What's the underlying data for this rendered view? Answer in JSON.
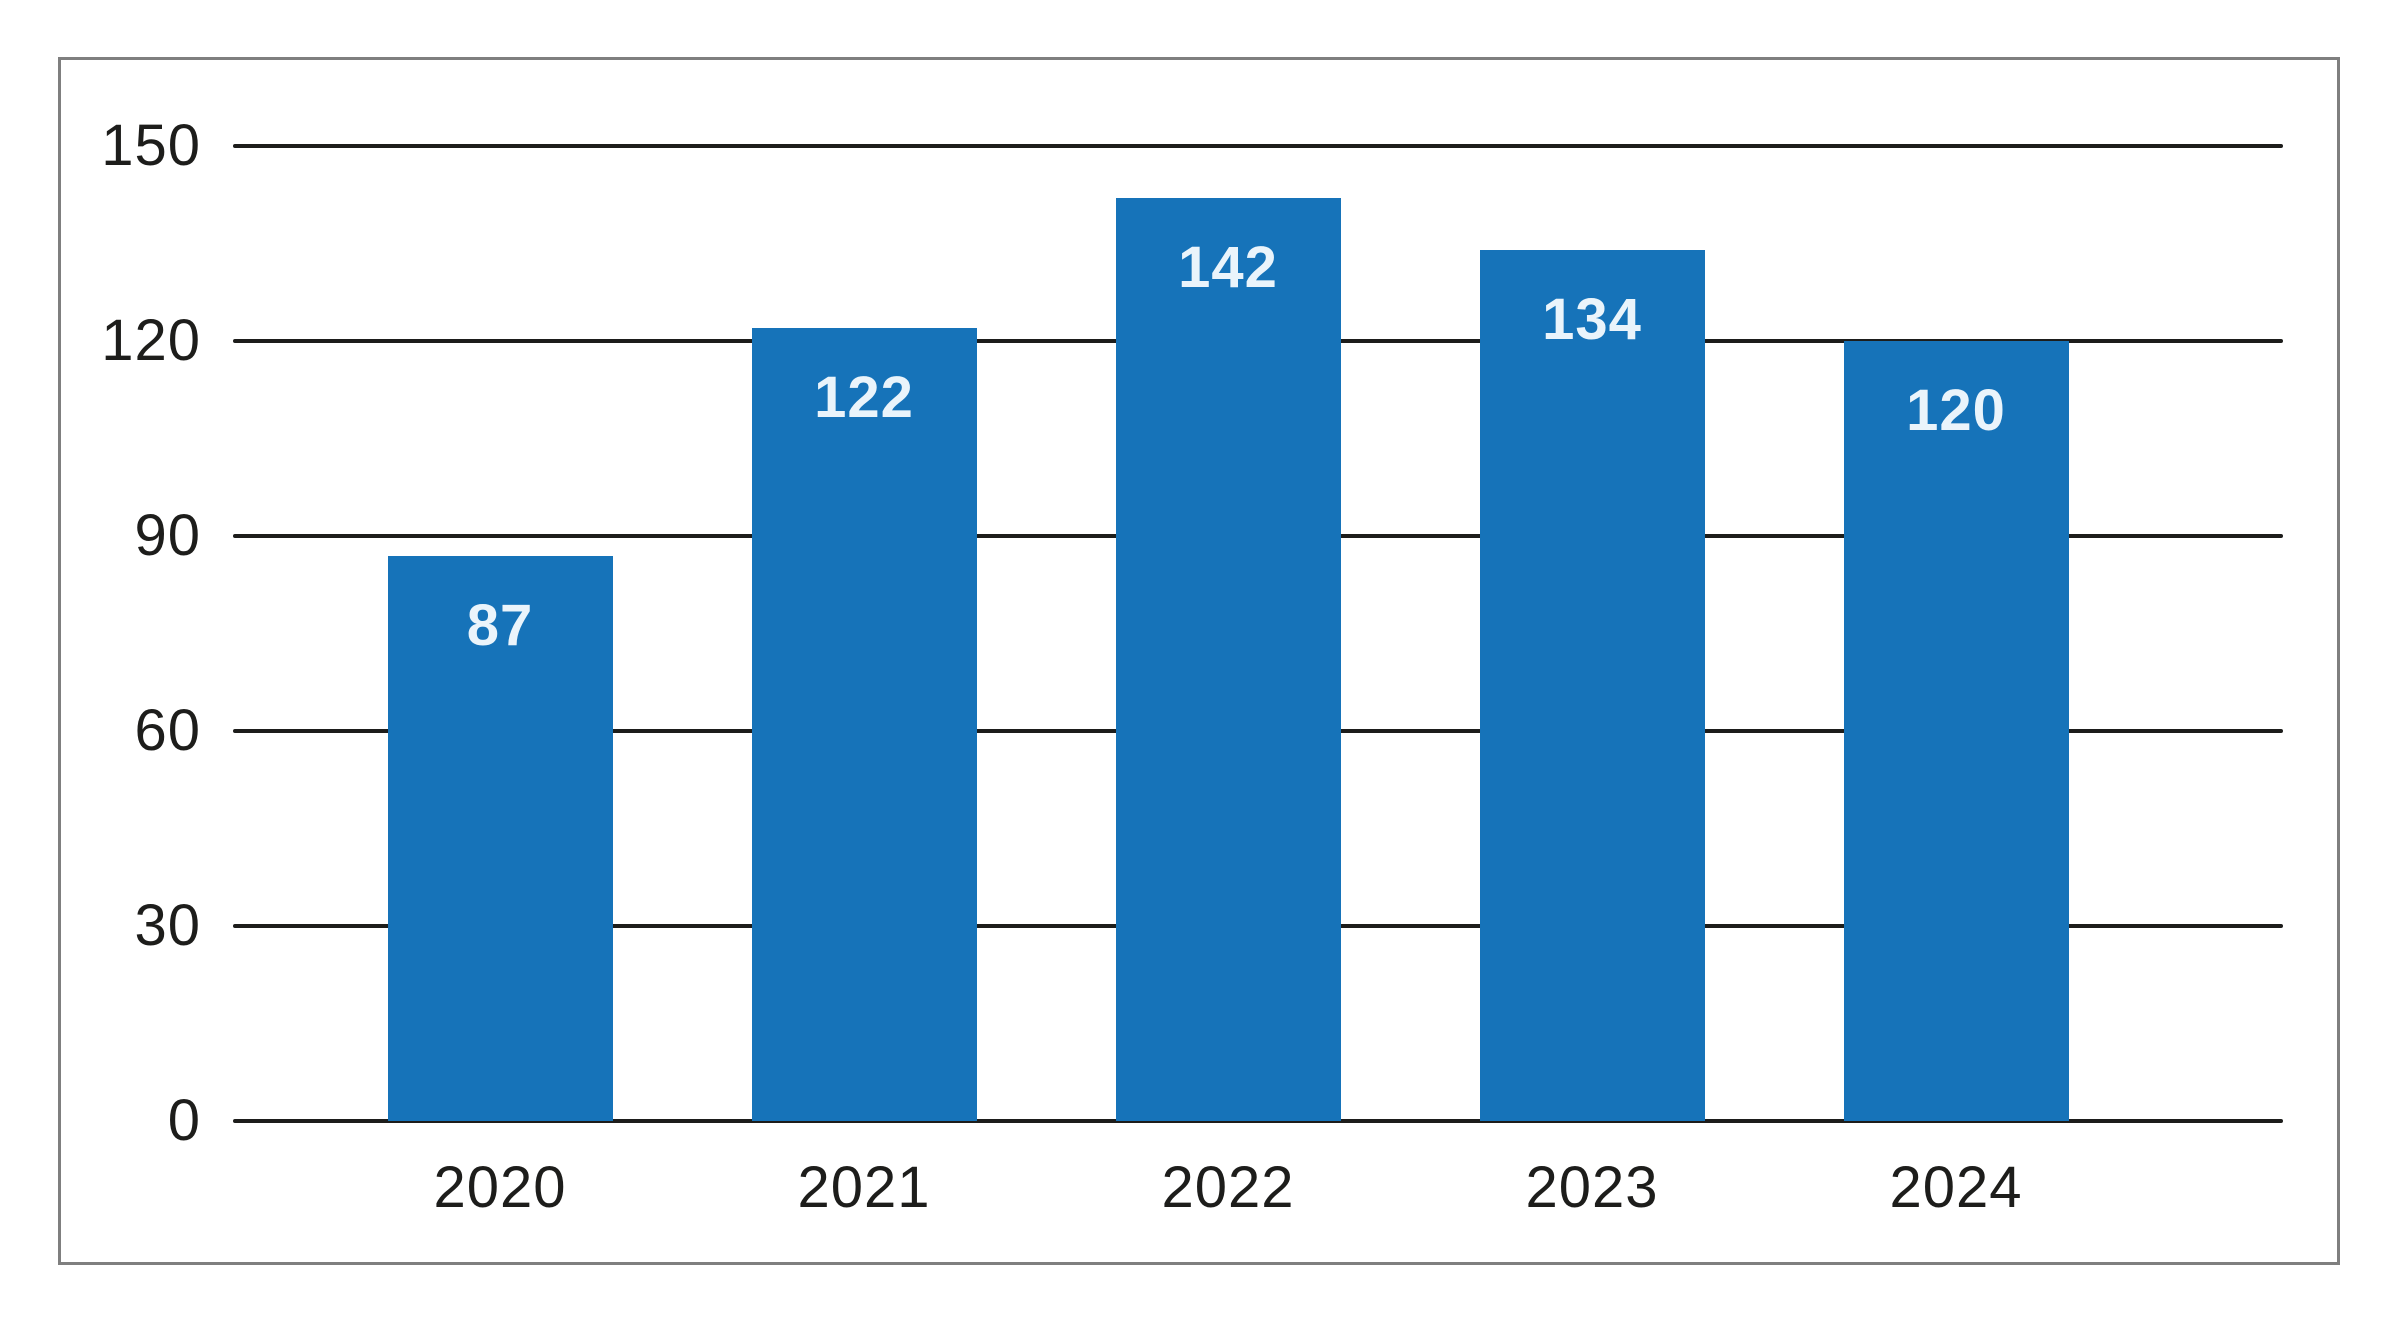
{
  "chart_data": {
    "type": "bar",
    "categories": [
      "2020",
      "2021",
      "2022",
      "2023",
      "2024"
    ],
    "values": [
      87,
      122,
      142,
      134,
      120
    ],
    "series": [
      {
        "name": "annual-value",
        "values": [
          87,
          122,
          142,
          134,
          120
        ]
      }
    ],
    "data_labels": [
      "87",
      "122",
      "142",
      "134",
      "120"
    ],
    "title": "",
    "subtitle": "",
    "xlabel": "",
    "ylabel": "",
    "ylim": [
      0,
      150
    ],
    "yticks": [
      0,
      30,
      60,
      90,
      120,
      150
    ],
    "ytick_labels": [
      "0",
      "30",
      "60",
      "90",
      "120",
      "150"
    ],
    "grid": true,
    "legend": "none",
    "colors": {
      "bar_fill": "#1673b9",
      "bar_value_label": "#eaf4fb",
      "gridline": "#1d1d1b",
      "tick_text": "#1d1d1b",
      "frame_border": "#7f7f7f",
      "background": "#ffffff"
    }
  }
}
